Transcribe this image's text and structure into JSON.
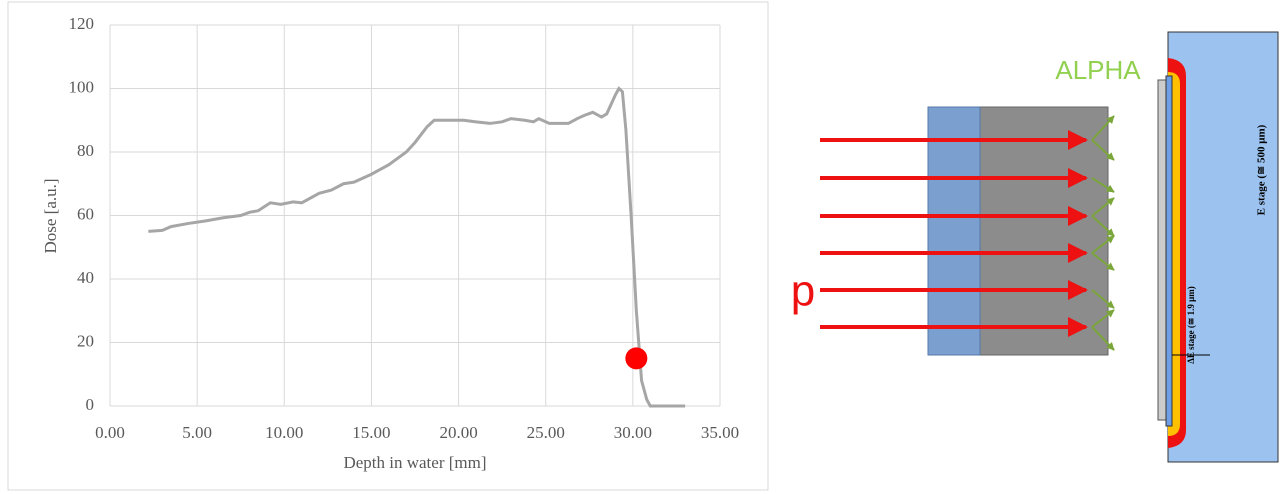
{
  "chart_data": {
    "type": "line",
    "x_label": "Depth in water [mm]",
    "y_label": "Dose [a.u.]",
    "xlim": [
      0,
      35
    ],
    "ylim": [
      0,
      120
    ],
    "xticks": [
      {
        "value": 0,
        "label": "0.00"
      },
      {
        "value": 5,
        "label": "5.00"
      },
      {
        "value": 10,
        "label": "10.00"
      },
      {
        "value": 15,
        "label": "15.00"
      },
      {
        "value": 20,
        "label": "20.00"
      },
      {
        "value": 25,
        "label": "25.00"
      },
      {
        "value": 30,
        "label": "30.00"
      },
      {
        "value": 35,
        "label": "35.00"
      }
    ],
    "yticks": [
      0,
      20,
      40,
      60,
      80,
      100,
      120
    ],
    "grid": true,
    "series": [
      {
        "color": "#a6a6a6",
        "x": [
          2.2,
          3,
          3.5,
          4.5,
          5.5,
          6.5,
          7.5,
          8,
          8.5,
          9.2,
          9.8,
          10.5,
          11,
          12,
          12.7,
          13.4,
          14,
          15,
          16,
          17,
          17.5,
          18.2,
          18.6,
          19.5,
          20.3,
          21,
          21.8,
          22.5,
          23,
          23.8,
          24.3,
          24.6,
          25.2,
          25.8,
          26.3,
          26.8,
          27.2,
          27.7,
          28.2,
          28.5,
          29,
          29.2,
          29.4,
          29.6,
          29.9,
          30.2,
          30.5,
          30.8,
          31,
          33
        ],
        "values": [
          55,
          55.3,
          56.5,
          57.5,
          58.3,
          59.3,
          60,
          61,
          61.5,
          64,
          63.5,
          64.3,
          64,
          67,
          68,
          70,
          70.5,
          73,
          76,
          80,
          83,
          88,
          90,
          90,
          90,
          89.5,
          89,
          89.5,
          90.5,
          90,
          89.5,
          90.5,
          89,
          89,
          89,
          90.5,
          91.5,
          92.5,
          91,
          92,
          98,
          100,
          99,
          87,
          60,
          30,
          8,
          2,
          0,
          0
        ]
      }
    ],
    "highlight_point": {
      "x": 30.2,
      "y": 15,
      "color": "#ff0000"
    }
  },
  "diagram": {
    "alpha_label": "ALPHA",
    "proton_label": "p",
    "e_stage_label": "E stage (≅ 500 μm)",
    "de_stage_label": "ΔE stage (≅ 1.9 μm)"
  }
}
